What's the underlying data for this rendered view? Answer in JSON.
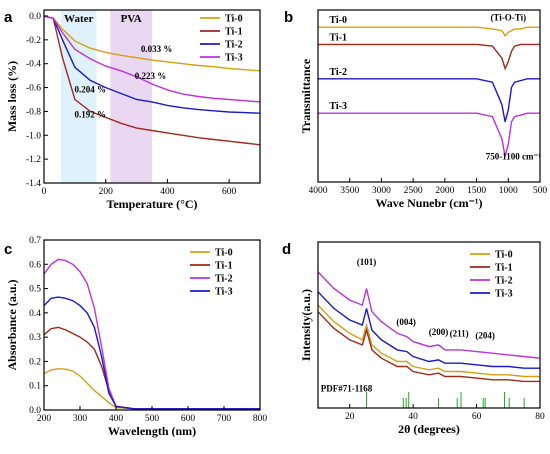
{
  "panels": [
    {
      "id": "a",
      "letter": "a",
      "type": "line",
      "xlabel": "Temperature (°C)",
      "ylabel": "Mass loss (%)",
      "xlim": [
        0,
        700
      ],
      "ylim": [
        -1.4,
        0.05
      ],
      "xticks": [
        0,
        200,
        400,
        600
      ],
      "yticks": [
        0.0,
        -0.2,
        -0.4,
        -0.6,
        -0.8,
        -1.0,
        -1.2,
        -1.4
      ],
      "legend_position": "right",
      "regions": [
        {
          "label": "Water",
          "from": 55,
          "to": 170,
          "color": "#dff1fa"
        },
        {
          "label": "PVA",
          "from": 215,
          "to": 350,
          "color": "#ead7f2"
        }
      ],
      "annotations": [
        {
          "text": "0.033 %",
          "x": 365,
          "y": -0.3
        },
        {
          "text": "0.223 %",
          "x": 345,
          "y": -0.53
        },
        {
          "text": "0.204 %",
          "x": 150,
          "y": -0.64
        },
        {
          "text": "0.192 %",
          "x": 150,
          "y": -0.85
        }
      ],
      "series": [
        {
          "name": "Ti-0",
          "color": "#d4a017",
          "x": [
            0,
            30,
            60,
            100,
            150,
            200,
            250,
            300,
            350,
            400,
            450,
            500,
            550,
            600,
            650,
            700
          ],
          "y": [
            0,
            -0.02,
            -0.11,
            -0.21,
            -0.27,
            -0.305,
            -0.33,
            -0.35,
            -0.37,
            -0.385,
            -0.4,
            -0.415,
            -0.425,
            -0.44,
            -0.45,
            -0.46
          ]
        },
        {
          "name": "Ti-1",
          "color": "#a0281e",
          "x": [
            0,
            30,
            60,
            100,
            150,
            200,
            250,
            300,
            350,
            400,
            450,
            500,
            550,
            600,
            650,
            700
          ],
          "y": [
            0,
            -0.02,
            -0.35,
            -0.7,
            -0.8,
            -0.85,
            -0.9,
            -0.94,
            -0.96,
            -0.98,
            -1.0,
            -1.02,
            -1.035,
            -1.05,
            -1.065,
            -1.08
          ]
        },
        {
          "name": "Ti-2",
          "color": "#1a1acc",
          "x": [
            0,
            30,
            60,
            100,
            150,
            200,
            250,
            300,
            350,
            400,
            450,
            500,
            550,
            600,
            650,
            700
          ],
          "y": [
            0,
            -0.02,
            -0.2,
            -0.43,
            -0.54,
            -0.6,
            -0.65,
            -0.7,
            -0.72,
            -0.75,
            -0.77,
            -0.785,
            -0.795,
            -0.805,
            -0.81,
            -0.815
          ]
        },
        {
          "name": "Ti-3",
          "color": "#bb33dd",
          "x": [
            0,
            30,
            60,
            100,
            150,
            200,
            250,
            300,
            350,
            400,
            450,
            500,
            550,
            600,
            650,
            700
          ],
          "y": [
            0,
            -0.02,
            -0.14,
            -0.28,
            -0.36,
            -0.42,
            -0.46,
            -0.51,
            -0.57,
            -0.62,
            -0.655,
            -0.675,
            -0.69,
            -0.7,
            -0.71,
            -0.72
          ]
        }
      ]
    },
    {
      "id": "b",
      "letter": "b",
      "type": "line",
      "xlabel": "Wave Nunebr (cm⁻¹)",
      "ylabel": "Transmittance",
      "xlim": [
        4000,
        500
      ],
      "ylim": [
        0,
        1
      ],
      "xticks": [
        4000,
        3500,
        3000,
        2500,
        2000,
        1500,
        1000,
        500
      ],
      "yticks": [],
      "legend_position": "labels on curves",
      "annotations": [
        {
          "text": "(Ti-O-Ti)",
          "x": 1000,
          "y": 0.94
        },
        {
          "text": "750-1100 cm⁻¹",
          "x": 920,
          "y": 0.13
        }
      ],
      "series": [
        {
          "name": "Ti-0",
          "color": "#d4a017",
          "x": [
            4000,
            3500,
            3000,
            2500,
            2000,
            1500,
            1250,
            1100,
            1050,
            1000,
            950,
            900,
            800,
            700,
            600,
            500
          ],
          "y": [
            0.9,
            0.9,
            0.9,
            0.9,
            0.9,
            0.9,
            0.89,
            0.88,
            0.85,
            0.87,
            0.88,
            0.89,
            0.89,
            0.9,
            0.9,
            0.9
          ]
        },
        {
          "name": "Ti-1",
          "color": "#a0281e",
          "x": [
            4000,
            3500,
            3000,
            2500,
            2000,
            1500,
            1250,
            1100,
            1050,
            1000,
            950,
            900,
            800,
            700,
            600,
            500
          ],
          "y": [
            0.8,
            0.8,
            0.8,
            0.8,
            0.8,
            0.8,
            0.79,
            0.72,
            0.66,
            0.7,
            0.76,
            0.79,
            0.8,
            0.8,
            0.8,
            0.8
          ]
        },
        {
          "name": "Ti-2",
          "color": "#1a1acc",
          "x": [
            4000,
            3500,
            3000,
            2500,
            2000,
            1500,
            1250,
            1100,
            1050,
            1000,
            950,
            900,
            800,
            700,
            600,
            500
          ],
          "y": [
            0.6,
            0.6,
            0.6,
            0.6,
            0.6,
            0.6,
            0.58,
            0.45,
            0.35,
            0.42,
            0.55,
            0.58,
            0.59,
            0.6,
            0.6,
            0.6
          ]
        },
        {
          "name": "Ti-3",
          "color": "#bb33dd",
          "x": [
            4000,
            3500,
            3000,
            2500,
            2000,
            1500,
            1250,
            1100,
            1050,
            1000,
            950,
            900,
            800,
            700,
            600,
            500
          ],
          "y": [
            0.4,
            0.4,
            0.4,
            0.4,
            0.4,
            0.4,
            0.38,
            0.25,
            0.15,
            0.22,
            0.35,
            0.38,
            0.39,
            0.4,
            0.4,
            0.4
          ]
        }
      ]
    },
    {
      "id": "c",
      "letter": "c",
      "type": "line",
      "xlabel": "Wavelength (nm)",
      "ylabel": "Absorbance (a.u.)",
      "xlim": [
        200,
        800
      ],
      "ylim": [
        0,
        0.7
      ],
      "xticks": [
        200,
        300,
        400,
        500,
        600,
        700,
        800
      ],
      "yticks": [
        0.0,
        0.1,
        0.2,
        0.3,
        0.4,
        0.5,
        0.6,
        0.7
      ],
      "legend_position": "top-right",
      "series": [
        {
          "name": "Ti-0",
          "color": "#d4a017",
          "x": [
            200,
            220,
            240,
            260,
            280,
            300,
            320,
            340,
            360,
            380,
            400,
            450,
            500,
            600,
            700,
            800
          ],
          "y": [
            0.15,
            0.165,
            0.17,
            0.168,
            0.16,
            0.14,
            0.11,
            0.08,
            0.055,
            0.03,
            0.01,
            0.005,
            0.005,
            0.005,
            0.005,
            0.005
          ]
        },
        {
          "name": "Ti-1",
          "color": "#a0281e",
          "x": [
            200,
            220,
            240,
            260,
            280,
            300,
            320,
            340,
            360,
            380,
            400,
            450,
            500,
            600,
            700,
            800
          ],
          "y": [
            0.31,
            0.335,
            0.34,
            0.33,
            0.315,
            0.3,
            0.28,
            0.25,
            0.18,
            0.08,
            0.015,
            0.005,
            0.005,
            0.005,
            0.005,
            0.005
          ]
        },
        {
          "name": "Ti-2",
          "color": "#bb33dd",
          "x": [
            200,
            220,
            240,
            260,
            280,
            300,
            320,
            340,
            360,
            380,
            400,
            450,
            500,
            600,
            700,
            800
          ],
          "y": [
            0.56,
            0.6,
            0.62,
            0.615,
            0.6,
            0.57,
            0.52,
            0.42,
            0.26,
            0.09,
            0.015,
            0.005,
            0.005,
            0.005,
            0.005,
            0.005
          ]
        },
        {
          "name": "Ti-3",
          "color": "#1a1acc",
          "x": [
            200,
            220,
            240,
            260,
            280,
            300,
            320,
            340,
            360,
            380,
            400,
            450,
            500,
            600,
            700,
            800
          ],
          "y": [
            0.43,
            0.46,
            0.465,
            0.46,
            0.45,
            0.43,
            0.4,
            0.34,
            0.22,
            0.07,
            0.015,
            0.005,
            0.005,
            0.005,
            0.005,
            0.005
          ]
        }
      ]
    },
    {
      "id": "d",
      "letter": "d",
      "type": "line",
      "xlabel": "2θ (degrees)",
      "ylabel": "Intensity(a.u.)",
      "xlim": [
        10,
        80
      ],
      "ylim": [
        0,
        1
      ],
      "xticks": [
        20,
        40,
        60,
        80
      ],
      "yticks": [],
      "legend_position": "top-right",
      "annotations": [
        {
          "text": "(101)",
          "x": 25.3,
          "y": 0.86
        },
        {
          "text": "(004)",
          "x": 37.8,
          "y": 0.5
        },
        {
          "text": "(200)",
          "x": 48,
          "y": 0.44
        },
        {
          "text": "(211)",
          "x": 54.5,
          "y": 0.43
        },
        {
          "text": "(204)",
          "x": 62.7,
          "y": 0.42
        },
        {
          "text": "PDF#71-1168",
          "x": 19,
          "y": 0.1
        }
      ],
      "reference_peaks": [
        25.3,
        36.9,
        37.8,
        38.6,
        48.0,
        53.9,
        55.1,
        62.1,
        62.7,
        68.8,
        70.3,
        75.0
      ],
      "series": [
        {
          "name": "Ti-0",
          "color": "#d4a017",
          "x": [
            10,
            15,
            20,
            24,
            25.3,
            27,
            30,
            35,
            38,
            40,
            45,
            48,
            50,
            55,
            60,
            65,
            70,
            75,
            80
          ],
          "y": [
            0.62,
            0.52,
            0.45,
            0.41,
            0.5,
            0.38,
            0.33,
            0.28,
            0.28,
            0.25,
            0.23,
            0.24,
            0.22,
            0.22,
            0.21,
            0.2,
            0.2,
            0.19,
            0.19
          ]
        },
        {
          "name": "Ti-1",
          "color": "#a0281e",
          "x": [
            10,
            15,
            20,
            24,
            25.3,
            27,
            30,
            35,
            38,
            40,
            45,
            48,
            50,
            55,
            60,
            65,
            70,
            75,
            80
          ],
          "y": [
            0.58,
            0.48,
            0.41,
            0.38,
            0.47,
            0.35,
            0.3,
            0.25,
            0.25,
            0.22,
            0.2,
            0.21,
            0.19,
            0.19,
            0.18,
            0.17,
            0.17,
            0.16,
            0.16
          ]
        },
        {
          "name": "Ti-2",
          "color": "#bb33dd",
          "x": [
            10,
            15,
            20,
            24,
            25.3,
            27,
            30,
            35,
            38,
            40,
            45,
            48,
            50,
            55,
            60,
            65,
            70,
            75,
            80
          ],
          "y": [
            0.82,
            0.72,
            0.65,
            0.62,
            0.72,
            0.58,
            0.52,
            0.45,
            0.43,
            0.4,
            0.37,
            0.38,
            0.35,
            0.35,
            0.34,
            0.33,
            0.32,
            0.31,
            0.3
          ]
        },
        {
          "name": "Ti-3",
          "color": "#1a1acc",
          "x": [
            10,
            15,
            20,
            24,
            25.3,
            27,
            30,
            35,
            38,
            40,
            45,
            48,
            50,
            55,
            60,
            65,
            70,
            75,
            80
          ],
          "y": [
            0.7,
            0.6,
            0.53,
            0.5,
            0.6,
            0.47,
            0.41,
            0.35,
            0.34,
            0.31,
            0.28,
            0.29,
            0.27,
            0.27,
            0.26,
            0.25,
            0.25,
            0.24,
            0.24
          ]
        }
      ]
    }
  ]
}
